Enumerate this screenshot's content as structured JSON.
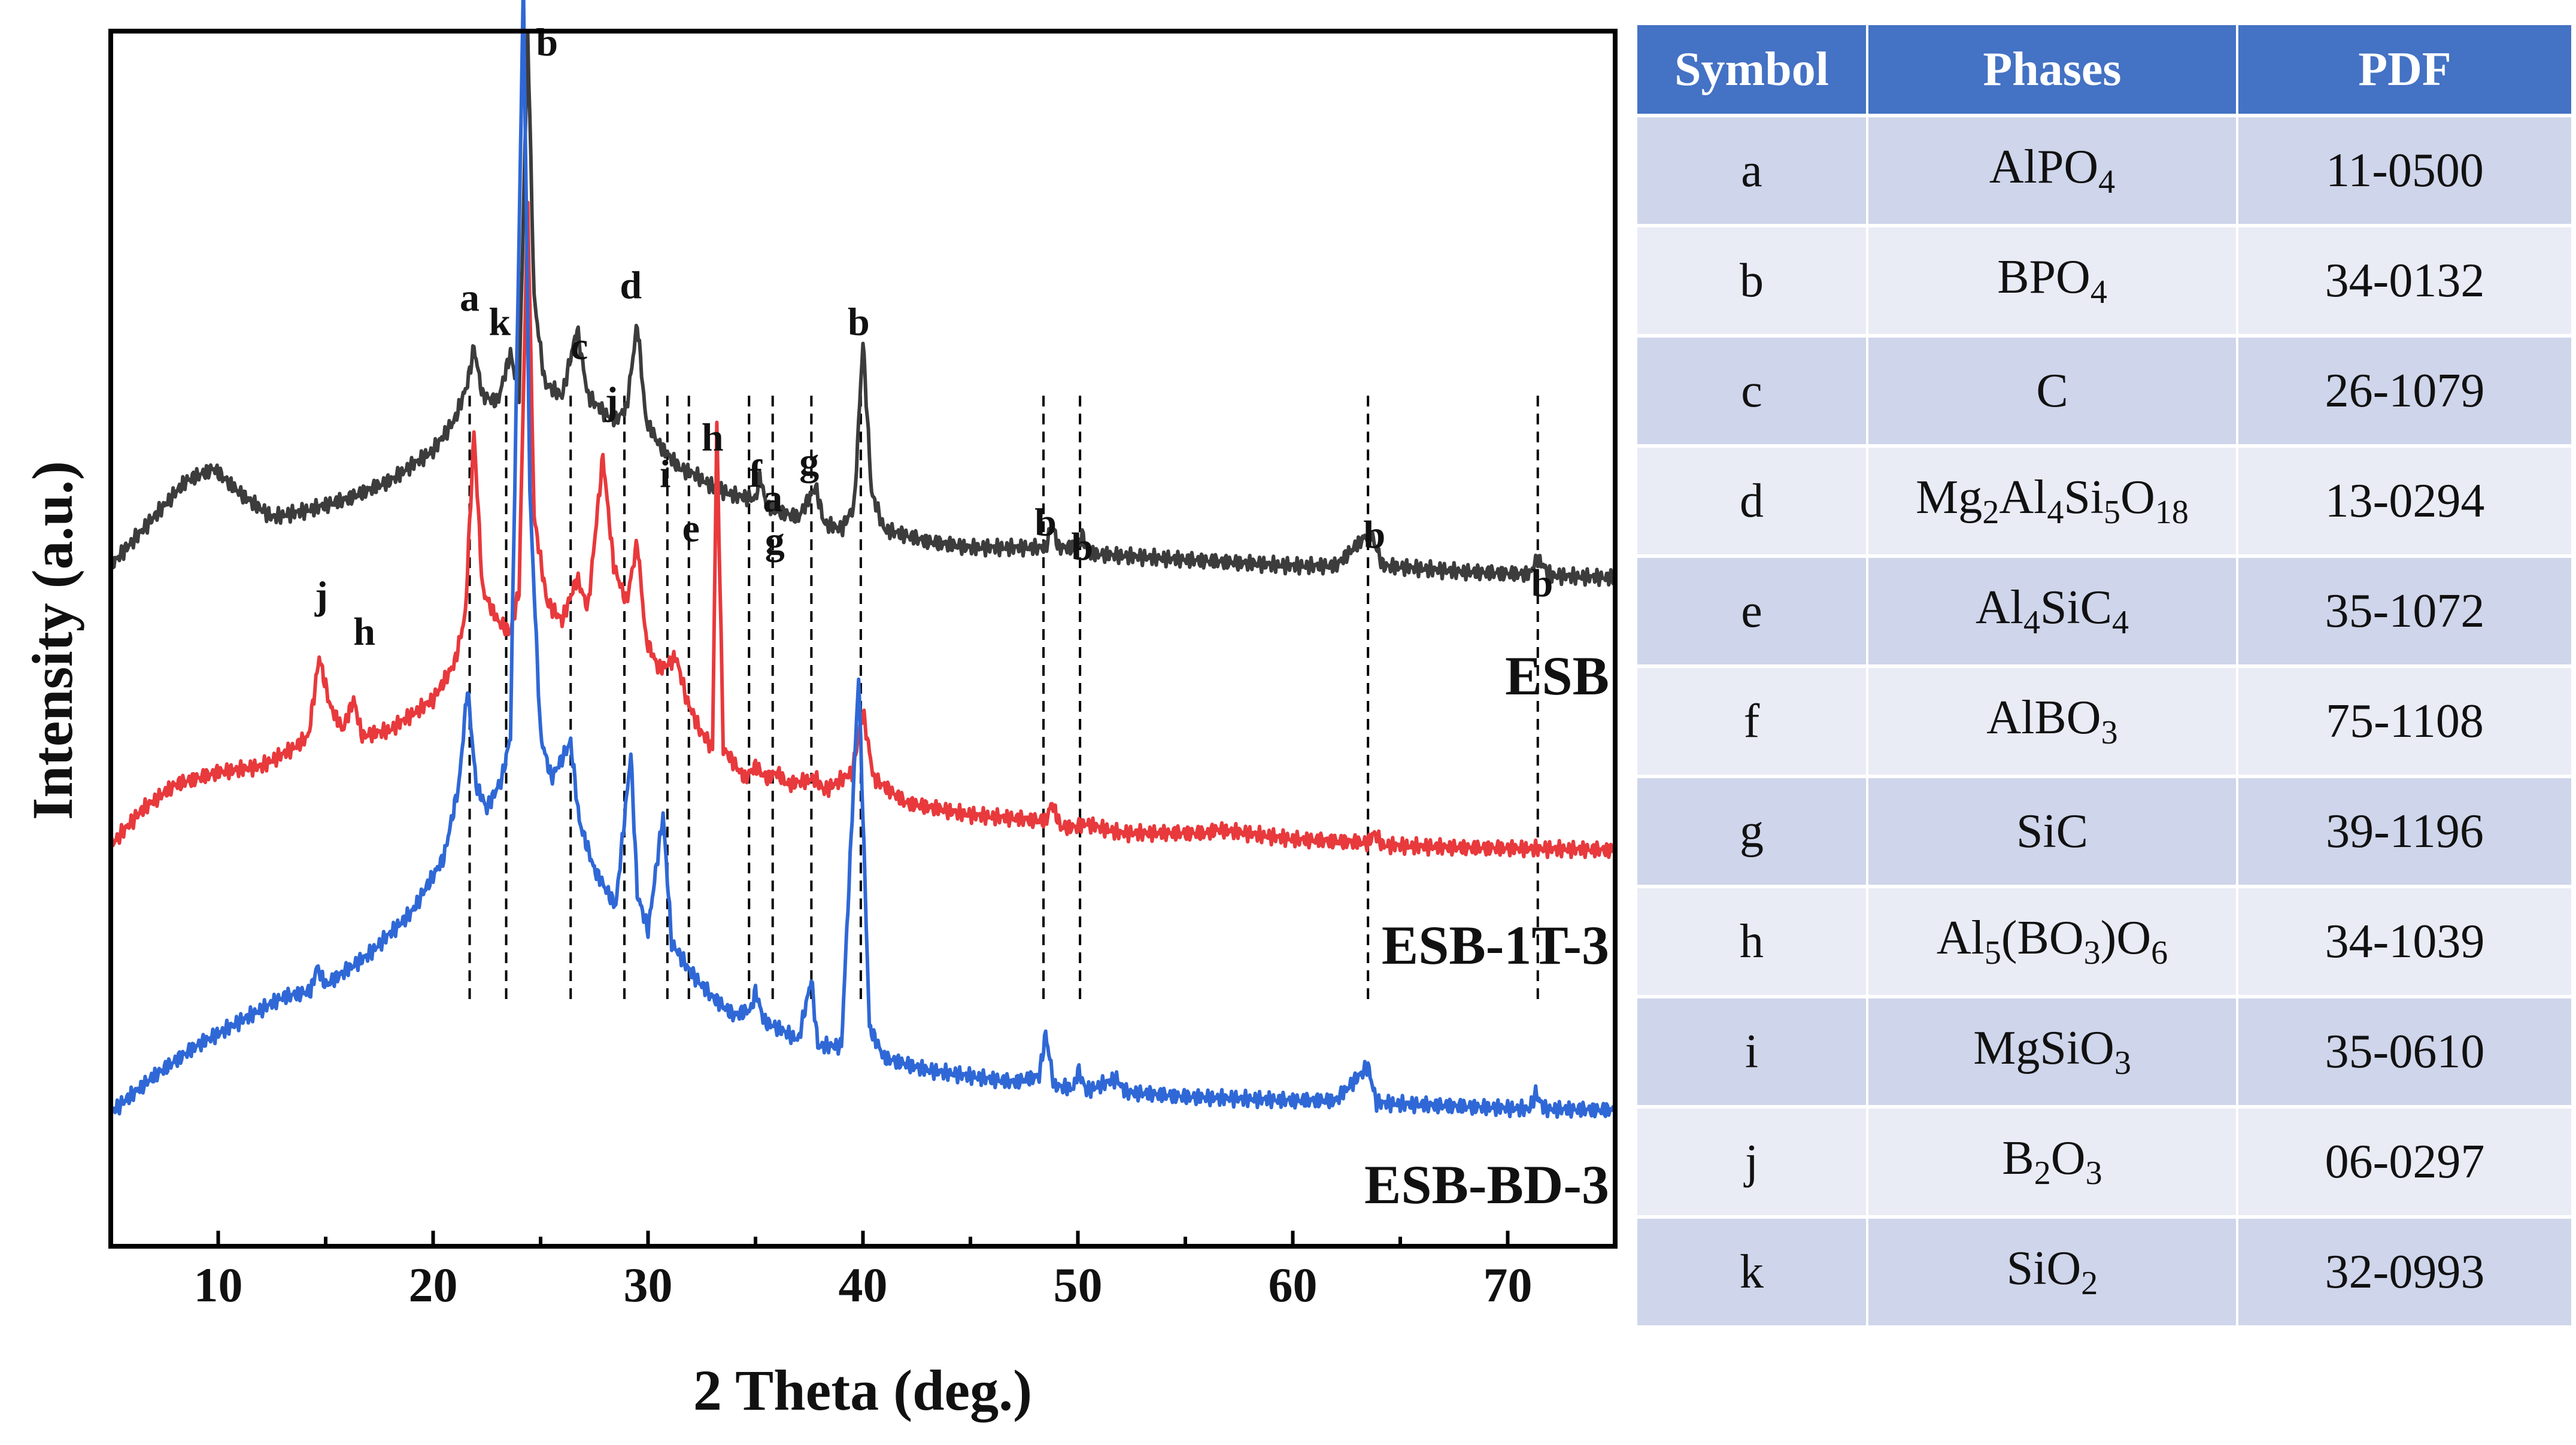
{
  "chart_data": {
    "type": "line",
    "xlabel": "2 Theta (deg.)",
    "ylabel": "Intensity (a.u.)",
    "xlim": [
      5,
      75
    ],
    "ylim": [
      0,
      100
    ],
    "xticks": [
      10,
      20,
      30,
      40,
      50,
      60,
      70
    ],
    "grid": false,
    "series": [
      {
        "name": "ESB",
        "color": "#3c3c3c",
        "points": [
          [
            5,
            56
          ],
          [
            7,
            60
          ],
          [
            8.5,
            63
          ],
          [
            9.8,
            64
          ],
          [
            11,
            62
          ],
          [
            12.5,
            60
          ],
          [
            14,
            60.5
          ],
          [
            16,
            61.5
          ],
          [
            18,
            63
          ],
          [
            20,
            65.5
          ],
          [
            21,
            68
          ],
          [
            21.6,
            71
          ],
          [
            21.9,
            74
          ],
          [
            22.3,
            70
          ],
          [
            23,
            69.5
          ],
          [
            23.6,
            73.5
          ],
          [
            24,
            70
          ],
          [
            24.4,
            100
          ],
          [
            24.7,
            78
          ],
          [
            25.2,
            71
          ],
          [
            26,
            70
          ],
          [
            26.7,
            75.5
          ],
          [
            27.2,
            70
          ],
          [
            28,
            68.5
          ],
          [
            28.5,
            68
          ],
          [
            29,
            69
          ],
          [
            29.5,
            76
          ],
          [
            29.9,
            68
          ],
          [
            30.5,
            66
          ],
          [
            31,
            65
          ],
          [
            31.5,
            64
          ],
          [
            32.2,
            63.5
          ],
          [
            33,
            62.5
          ],
          [
            34,
            61.8
          ],
          [
            35,
            61.5
          ],
          [
            35.2,
            63.5
          ],
          [
            35.5,
            61
          ],
          [
            36,
            60.5
          ],
          [
            37,
            60
          ],
          [
            37.8,
            62.5
          ],
          [
            38.2,
            59.5
          ],
          [
            39,
            59
          ],
          [
            39.6,
            61
          ],
          [
            40,
            74.5
          ],
          [
            40.4,
            62
          ],
          [
            41,
            59
          ],
          [
            43,
            58
          ],
          [
            45,
            57.5
          ],
          [
            47,
            57.5
          ],
          [
            48.5,
            57.5
          ],
          [
            48.8,
            59.5
          ],
          [
            49.1,
            57.5
          ],
          [
            50,
            57.5
          ],
          [
            50.2,
            58.5
          ],
          [
            50.5,
            57
          ],
          [
            55,
            56.5
          ],
          [
            60,
            56
          ],
          [
            62,
            56
          ],
          [
            63.6,
            58.8
          ],
          [
            64.2,
            56
          ],
          [
            68,
            55.5
          ],
          [
            71,
            55.3
          ],
          [
            71.4,
            56.6
          ],
          [
            72,
            55.2
          ],
          [
            75,
            55
          ]
        ]
      },
      {
        "name": "ESB-1T-3",
        "color": "#e8393c",
        "points": [
          [
            5,
            33
          ],
          [
            6.5,
            36
          ],
          [
            8,
            38
          ],
          [
            10,
            39
          ],
          [
            12,
            39.5
          ],
          [
            13.5,
            41
          ],
          [
            14.2,
            42
          ],
          [
            14.7,
            48.5
          ],
          [
            15.2,
            44.5
          ],
          [
            15.8,
            42.5
          ],
          [
            16.3,
            45
          ],
          [
            16.7,
            42
          ],
          [
            18,
            42.5
          ],
          [
            20,
            45
          ],
          [
            21,
            48
          ],
          [
            21.5,
            52
          ],
          [
            21.9,
            67
          ],
          [
            22.3,
            54
          ],
          [
            23,
            51.5
          ],
          [
            23.6,
            50.5
          ],
          [
            24,
            54
          ],
          [
            24.4,
            86
          ],
          [
            24.7,
            60
          ],
          [
            25.3,
            53
          ],
          [
            26,
            51.5
          ],
          [
            26.7,
            55
          ],
          [
            27.2,
            52.5
          ],
          [
            27.9,
            65
          ],
          [
            28.4,
            56
          ],
          [
            29,
            53
          ],
          [
            29.5,
            58
          ],
          [
            29.9,
            50
          ],
          [
            30.5,
            47.5
          ],
          [
            31,
            48
          ],
          [
            31.3,
            48.5
          ],
          [
            31.8,
            45
          ],
          [
            32.4,
            42.5
          ],
          [
            33,
            41
          ],
          [
            33.2,
            67.5
          ],
          [
            33.5,
            41
          ],
          [
            34.5,
            38.5
          ],
          [
            35,
            39.5
          ],
          [
            35.5,
            38.5
          ],
          [
            36,
            39
          ],
          [
            36.5,
            38
          ],
          [
            37.8,
            38.5
          ],
          [
            38.2,
            37.5
          ],
          [
            39.5,
            39
          ],
          [
            40,
            44
          ],
          [
            40.5,
            38.5
          ],
          [
            42,
            36.5
          ],
          [
            45,
            35.5
          ],
          [
            48.5,
            35
          ],
          [
            48.8,
            36.5
          ],
          [
            49.2,
            34.5
          ],
          [
            50,
            34.5
          ],
          [
            50.3,
            34.8
          ],
          [
            52,
            34
          ],
          [
            56,
            34
          ],
          [
            56.5,
            34.3
          ],
          [
            60,
            33.5
          ],
          [
            63.5,
            33.2
          ],
          [
            63.8,
            34
          ],
          [
            64.2,
            33
          ],
          [
            68,
            32.8
          ],
          [
            72,
            32.7
          ],
          [
            75,
            32.6
          ]
        ]
      },
      {
        "name": "ESB-BD-3",
        "color": "#2f68d6",
        "points": [
          [
            5,
            11
          ],
          [
            7,
            14
          ],
          [
            9,
            16.5
          ],
          [
            11,
            18.5
          ],
          [
            13,
            20.5
          ],
          [
            14.3,
            21
          ],
          [
            14.6,
            23
          ],
          [
            15,
            21.5
          ],
          [
            17,
            24
          ],
          [
            19,
            27.5
          ],
          [
            20.5,
            32
          ],
          [
            21.2,
            38
          ],
          [
            21.6,
            46
          ],
          [
            22,
            38
          ],
          [
            22.5,
            36
          ],
          [
            23.2,
            38.5
          ],
          [
            23.6,
            42
          ],
          [
            24.2,
            104
          ],
          [
            24.5,
            62
          ],
          [
            25,
            42
          ],
          [
            25.5,
            38.5
          ],
          [
            26.4,
            41.5
          ],
          [
            26.8,
            35
          ],
          [
            27.5,
            31
          ],
          [
            28.5,
            28
          ],
          [
            29.2,
            40.5
          ],
          [
            29.5,
            29
          ],
          [
            30,
            26
          ],
          [
            30.7,
            35.5
          ],
          [
            31.1,
            25
          ],
          [
            32,
            22.5
          ],
          [
            33,
            20.5
          ],
          [
            34,
            19
          ],
          [
            34.8,
            19.5
          ],
          [
            35,
            21
          ],
          [
            35.4,
            18.5
          ],
          [
            36,
            18
          ],
          [
            37,
            17
          ],
          [
            37.6,
            22
          ],
          [
            37.9,
            16.5
          ],
          [
            39,
            16.5
          ],
          [
            39.8,
            47
          ],
          [
            40.3,
            18
          ],
          [
            41,
            15.5
          ],
          [
            43,
            14.5
          ],
          [
            45,
            14
          ],
          [
            47,
            13.5
          ],
          [
            48.2,
            14
          ],
          [
            48.5,
            17.5
          ],
          [
            48.9,
            13.2
          ],
          [
            49.8,
            13
          ],
          [
            50,
            14.5
          ],
          [
            50.4,
            12.8
          ],
          [
            51.8,
            13.8
          ],
          [
            52.2,
            12.7
          ],
          [
            55,
            12.3
          ],
          [
            60,
            12
          ],
          [
            62,
            12
          ],
          [
            63.5,
            14.8
          ],
          [
            63.9,
            11.8
          ],
          [
            68,
            11.5
          ],
          [
            71,
            11.3
          ],
          [
            71.3,
            12.6
          ],
          [
            71.7,
            11.3
          ],
          [
            75,
            11.2
          ]
        ]
      }
    ],
    "peak_labels": [
      {
        "text": "b",
        "x": 25.3,
        "y": 98
      },
      {
        "text": "a",
        "x": 21.7,
        "y": 77
      },
      {
        "text": "k",
        "x": 23.1,
        "y": 75
      },
      {
        "text": "c",
        "x": 26.8,
        "y": 73
      },
      {
        "text": "d",
        "x": 29.2,
        "y": 78
      },
      {
        "text": "j",
        "x": 28.3,
        "y": 68.5
      },
      {
        "text": "h",
        "x": 33.0,
        "y": 65.5
      },
      {
        "text": "i",
        "x": 30.8,
        "y": 62.5
      },
      {
        "text": "f",
        "x": 35.0,
        "y": 62.5
      },
      {
        "text": "a",
        "x": 35.8,
        "y": 60.5
      },
      {
        "text": "g",
        "x": 37.5,
        "y": 63.5
      },
      {
        "text": "e",
        "x": 32.0,
        "y": 58
      },
      {
        "text": "g",
        "x": 35.9,
        "y": 57
      },
      {
        "text": "b",
        "x": 39.8,
        "y": 75
      },
      {
        "text": "b",
        "x": 48.5,
        "y": 58.5
      },
      {
        "text": "b",
        "x": 50.2,
        "y": 56.5
      },
      {
        "text": "b",
        "x": 63.8,
        "y": 57.5
      },
      {
        "text": "b",
        "x": 71.6,
        "y": 53.5
      },
      {
        "text": "j",
        "x": 14.8,
        "y": 52.5
      },
      {
        "text": "h",
        "x": 16.8,
        "y": 49.5
      }
    ],
    "reference_lines_x": [
      21.7,
      23.4,
      26.4,
      28.9,
      30.9,
      31.9,
      34.7,
      35.8,
      37.6,
      39.9,
      48.4,
      50.1,
      63.5,
      71.4
    ],
    "reference_line_ylim": [
      20,
      70
    ]
  },
  "series_labels": [
    "ESB",
    "ESB-1T-3",
    "ESB-BD-3"
  ],
  "table": {
    "header_color": "#4472c4",
    "row_color_odd": "#cfd5ea",
    "row_color_even": "#e9ebf5",
    "headers": [
      "Symbol",
      "Phases",
      "PDF"
    ],
    "rows": [
      {
        "symbol": "a",
        "phase": [
          "AlPO",
          {
            "sub": "4"
          }
        ],
        "pdf": "11-0500"
      },
      {
        "symbol": "b",
        "phase": [
          "BPO",
          {
            "sub": "4"
          }
        ],
        "pdf": "34-0132"
      },
      {
        "symbol": "c",
        "phase": [
          "C"
        ],
        "pdf": "26-1079"
      },
      {
        "symbol": "d",
        "phase": [
          "Mg",
          {
            "sub": "2"
          },
          "Al",
          {
            "sub": "4"
          },
          "Si",
          {
            "sub": "5"
          },
          "O",
          {
            "sub": "18"
          }
        ],
        "pdf": "13-0294"
      },
      {
        "symbol": "e",
        "phase": [
          "Al",
          {
            "sub": "4"
          },
          "SiC",
          {
            "sub": "4"
          }
        ],
        "pdf": "35-1072"
      },
      {
        "symbol": "f",
        "phase": [
          "AlBO",
          {
            "sub": "3"
          }
        ],
        "pdf": "75-1108"
      },
      {
        "symbol": "g",
        "phase": [
          "SiC"
        ],
        "pdf": "39-1196"
      },
      {
        "symbol": "h",
        "phase": [
          "Al",
          {
            "sub": "5"
          },
          "(BO",
          {
            "sub": "3"
          },
          ")O",
          {
            "sub": "6"
          }
        ],
        "pdf": "34-1039"
      },
      {
        "symbol": "i",
        "phase": [
          "MgSiO",
          {
            "sub": "3"
          }
        ],
        "pdf": "35-0610"
      },
      {
        "symbol": "j",
        "phase": [
          "B",
          {
            "sub": "2"
          },
          "O",
          {
            "sub": "3"
          }
        ],
        "pdf": "06-0297"
      },
      {
        "symbol": "k",
        "phase": [
          "SiO",
          {
            "sub": "2"
          }
        ],
        "pdf": "32-0993"
      }
    ]
  }
}
